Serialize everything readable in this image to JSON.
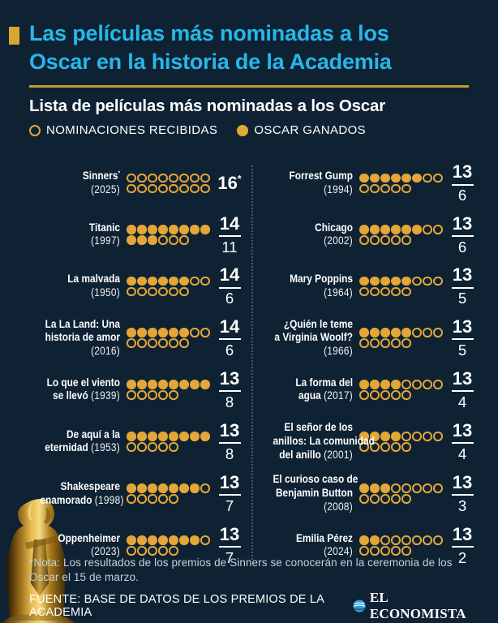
{
  "header": {
    "title_lines": [
      "Las películas más nominadas a los",
      "Oscar en la historia de la Academia"
    ],
    "subtitle": "Lista de películas más nominadas a los Oscar",
    "legend": [
      {
        "label": "NOMINACIONES RECIBIDAS",
        "marker": "open-circle"
      },
      {
        "label": "OSCAR GANADOS",
        "marker": "filled-circle"
      }
    ]
  },
  "chart_data": {
    "type": "table",
    "variant": "dot-pictogram",
    "dot_rule": "un punto por nominación; punto relleno = Oscar ganado; máximo 8 puntos por fila",
    "columns": [
      "film",
      "year",
      "nominations",
      "wins"
    ],
    "films_left": [
      {
        "label_lines": [
          "Sinners*",
          "(2025)"
        ],
        "year": "2025",
        "nominations": 16,
        "wins": 0,
        "nominations_label": "16*",
        "wins_label": null
      },
      {
        "label_lines": [
          "Titanic",
          "(1997)"
        ],
        "year": "1997",
        "nominations": 14,
        "wins": 11,
        "nominations_label": "14",
        "wins_label": "11"
      },
      {
        "label_lines": [
          "La malvada",
          "(1950)"
        ],
        "year": "1950",
        "nominations": 14,
        "wins": 6,
        "nominations_label": "14",
        "wins_label": "6"
      },
      {
        "label_lines": [
          "La La Land: Una",
          "historia de amor",
          "(2016)"
        ],
        "year": "2016",
        "nominations": 14,
        "wins": 6,
        "nominations_label": "14",
        "wins_label": "6"
      },
      {
        "label_lines": [
          "Lo que el viento",
          "se llevó (1939)"
        ],
        "year": "1939",
        "nominations": 13,
        "wins": 8,
        "nominations_label": "13",
        "wins_label": "8"
      },
      {
        "label_lines": [
          "De aquí a la",
          "eternidad (1953)"
        ],
        "year": "1953",
        "nominations": 13,
        "wins": 8,
        "nominations_label": "13",
        "wins_label": "8"
      },
      {
        "label_lines": [
          "Shakespeare",
          "enamorado (1998)"
        ],
        "year": "1998",
        "nominations": 13,
        "wins": 7,
        "nominations_label": "13",
        "wins_label": "7"
      },
      {
        "label_lines": [
          "Oppenheimer",
          "(2023)"
        ],
        "year": "2023",
        "nominations": 13,
        "wins": 7,
        "nominations_label": "13",
        "wins_label": "7"
      }
    ],
    "films_right": [
      {
        "label_lines": [
          "Forrest Gump",
          "(1994)"
        ],
        "year": "1994",
        "nominations": 13,
        "wins": 6,
        "nominations_label": "13",
        "wins_label": "6"
      },
      {
        "label_lines": [
          "Chicago",
          "(2002)"
        ],
        "year": "2002",
        "nominations": 13,
        "wins": 6,
        "nominations_label": "13",
        "wins_label": "6"
      },
      {
        "label_lines": [
          "Mary Poppins",
          "(1964)"
        ],
        "year": "1964",
        "nominations": 13,
        "wins": 5,
        "nominations_label": "13",
        "wins_label": "5"
      },
      {
        "label_lines": [
          "¿Quién le teme",
          "a Virginia Woolf?",
          "(1966)"
        ],
        "year": "1966",
        "nominations": 13,
        "wins": 5,
        "nominations_label": "13",
        "wins_label": "5"
      },
      {
        "label_lines": [
          "La forma del",
          "agua (2017)"
        ],
        "year": "2017",
        "nominations": 13,
        "wins": 4,
        "nominations_label": "13",
        "wins_label": "4"
      },
      {
        "label_lines": [
          "El señor de los",
          "anillos: La comunidad",
          "del anillo (2001)"
        ],
        "year": "2001",
        "nominations": 13,
        "wins": 4,
        "nominations_label": "13",
        "wins_label": "4"
      },
      {
        "label_lines": [
          "El curioso caso de",
          "Benjamin Button",
          "(2008)"
        ],
        "year": "2008",
        "nominations": 13,
        "wins": 3,
        "nominations_label": "13",
        "wins_label": "3"
      },
      {
        "label_lines": [
          "Emilia Pérez",
          "(2024)"
        ],
        "year": "2024",
        "nominations": 13,
        "wins": 2,
        "nominations_label": "13",
        "wins_label": "2"
      }
    ]
  },
  "footer": {
    "note_lines": [
      "*Nota: Los resultados de los premios de Sinners se conocerán en la ceremonia de los",
      "Oscar el 15 de marzo."
    ],
    "source_label": "FUENTE: BASE DE DATOS DE LOS PREMIOS DE LA ACADEMIA",
    "brand_name": "EL ECONOMISTA"
  },
  "colors": {
    "background": "#0e2234",
    "title_cyan": "#27b7e9",
    "gold": "#e4a636",
    "rule_gold": "#c7992f",
    "note_gray": "#c6d0d7"
  }
}
